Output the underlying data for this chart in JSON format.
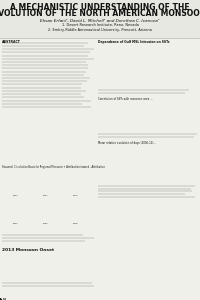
{
  "title_line1": "A MECHANISTIC UNDERSTANDING OF THE",
  "title_line2": "EVOLUTION OF THE NORTH AMERICAN MONSOON",
  "authors": "Ehsan Erfani¹, David L. Mitchell¹ and Dorothea C. Ivanova²",
  "affiliation1": "1. Desert Research Institute, Reno, Nevada",
  "affiliation2": "2. Embry-Riddle Aeronautical University, Prescott, Arizona",
  "bg_color": "#dcdcd4",
  "title_bg": "#d0d0c8",
  "body_bg": "#f0f0ea",
  "header_color": "#111111",
  "title_fontsize": 5.5,
  "author_fontsize": 3.0,
  "affil_fontsize": 2.5,
  "section_fontsize": 2.2,
  "text_color": "#222222",
  "text_line_color": "#555555"
}
